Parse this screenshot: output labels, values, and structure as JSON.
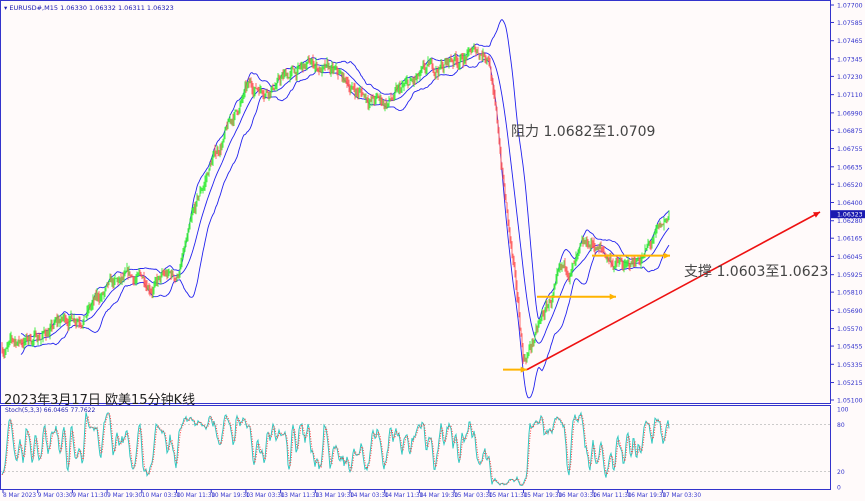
{
  "header": {
    "symbol": "EURUSD#,M15",
    "ohlc": "1.06330 1.06332 1.06311 1.06323"
  },
  "caption": "2023年3月17日 欧美15分钟K线",
  "annotations": {
    "resistance": "阻力 1.0682至1.0709",
    "support": "支撑 1.0603至1.0623"
  },
  "stoch": {
    "label": "Stoch(5,3,3) 66.0465 77.7622",
    "levels": [
      "100",
      "80",
      "20",
      "0"
    ]
  },
  "colors": {
    "bull": "#33ee33",
    "bear": "#ff5555",
    "bands": "#2222ee",
    "axis": "#3333cc",
    "stoch_main": "#33c8c0",
    "stoch_signal": "#ff3333",
    "support_arrow": "#ffb300",
    "trend_arrow": "#ee1111",
    "current_price_bg": "#1a1ab0"
  },
  "chart_data": {
    "type": "candlestick",
    "indicators": [
      "Bollinger Bands",
      "Stochastic(5,3,3)"
    ],
    "price_axis_ticks": [
      "1.07700",
      "1.07585",
      "1.07465",
      "1.07345",
      "1.07230",
      "1.07110",
      "1.06990",
      "1.06875",
      "1.06755",
      "1.06635",
      "1.06520",
      "1.06400",
      "1.06280",
      "1.06165",
      "1.06045",
      "1.05925",
      "1.05810",
      "1.05690",
      "1.05570",
      "1.05455",
      "1.05335",
      "1.05215",
      "1.05100"
    ],
    "current_price": "1.06323",
    "ylim": [
      1.051,
      1.077
    ],
    "time_axis_ticks": [
      "8 Mar 2023",
      "9 Mar 03:30",
      "9 Mar 11:30",
      "9 Mar 19:30",
      "10 Mar 03:30",
      "10 Mar 11:30",
      "10 Mar 19:30",
      "13 Mar 03:30",
      "13 Mar 11:30",
      "13 Mar 19:30",
      "14 Mar 03:30",
      "14 Mar 11:30",
      "14 Mar 19:30",
      "15 Mar 03:30",
      "15 Mar 11:30",
      "15 Mar 19:30",
      "16 Mar 03:30",
      "16 Mar 11:30",
      "16 Mar 19:30",
      "17 Mar 03:30"
    ],
    "approx_close_at_ticks": [
      1.0545,
      1.0552,
      1.0565,
      1.058,
      1.0588,
      1.059,
      1.0665,
      1.0712,
      1.0722,
      1.073,
      1.0715,
      1.0705,
      1.0718,
      1.0735,
      1.074,
      1.0535,
      1.0585,
      1.061,
      1.0595,
      1.062
    ],
    "last_close": 1.06323,
    "support_levels": [
      1.053,
      1.0578,
      1.0605
    ],
    "trendline": {
      "from": 1.053,
      "to": 1.064
    }
  }
}
